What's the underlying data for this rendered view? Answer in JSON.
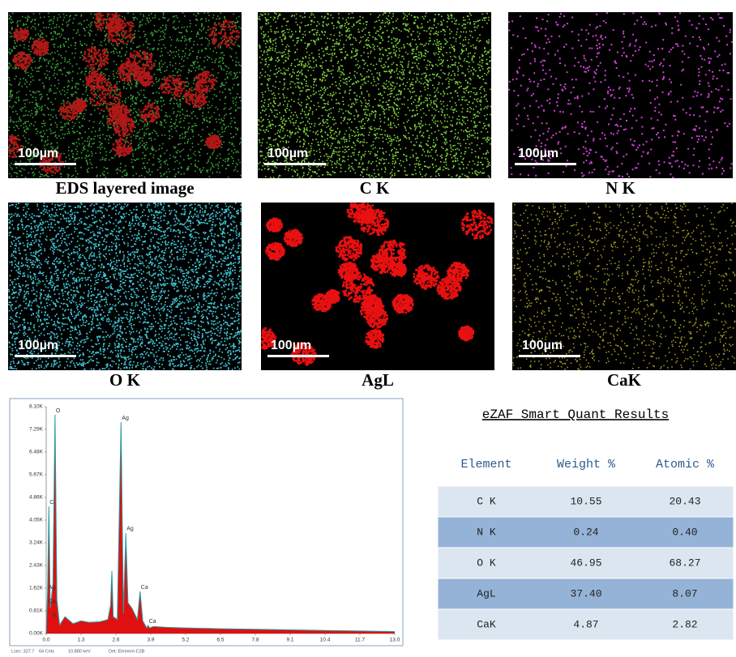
{
  "maps": [
    {
      "label": "EDS layered image",
      "scale_bar": "100µm"
    },
    {
      "label": "C K",
      "scale_bar": "100µm"
    },
    {
      "label": "N K",
      "scale_bar": "100µm"
    },
    {
      "label": "O K",
      "scale_bar": "100µm"
    },
    {
      "label": "AgL",
      "scale_bar": "100µm"
    },
    {
      "label": "CaK",
      "scale_bar": "100µm"
    }
  ],
  "chart_data": {
    "type": "area",
    "x": [
      0,
      0.05,
      0.1,
      0.15,
      0.2,
      0.25,
      0.33,
      0.4,
      0.5,
      0.7,
      1.0,
      1.3,
      1.6,
      2.0,
      2.3,
      2.4,
      2.45,
      2.5,
      2.65,
      2.79,
      2.88,
      2.97,
      3.05,
      3.2,
      3.4,
      3.5,
      3.6,
      3.75,
      3.8,
      3.85,
      4.0,
      4.5,
      5.2,
      6.5,
      7.8,
      9.1,
      10.4,
      11.7,
      13.0
    ],
    "values": [
      0,
      1500,
      4540,
      900,
      1300,
      1800,
      7810,
      1200,
      300,
      600,
      350,
      450,
      400,
      420,
      500,
      1000,
      2230,
      600,
      500,
      7550,
      700,
      3590,
      1100,
      900,
      500,
      1500,
      450,
      200,
      290,
      200,
      250,
      220,
      200,
      170,
      150,
      130,
      110,
      90,
      70
    ],
    "color": "#e01010",
    "line_color": "#2a9aa0",
    "xlim": [
      0,
      13.0
    ],
    "xticks": [
      {
        "value": 0,
        "label": "0.0"
      },
      1.3,
      2.6,
      3.9,
      5.2,
      6.5,
      7.8,
      9.1,
      10.4,
      11.7,
      {
        "value": 13,
        "label": "13.0"
      }
    ],
    "ylim": [
      0,
      8100
    ],
    "yticks": [
      {
        "value": 0,
        "label": "0.00K"
      },
      {
        "value": 810,
        "label": "0.81K"
      },
      {
        "value": 1620,
        "label": "1.62K"
      },
      {
        "value": 2430,
        "label": "2.43K"
      },
      {
        "value": 3240,
        "label": "3.24K"
      },
      {
        "value": 4050,
        "label": "4.05K"
      },
      {
        "value": 4860,
        "label": "4.86K"
      },
      {
        "value": 5670,
        "label": "5.67K"
      },
      {
        "value": 6480,
        "label": "6.48K"
      },
      {
        "value": 7290,
        "label": "7.29K"
      },
      {
        "value": 8100,
        "label": "8.10K"
      }
    ],
    "annotations": [
      {
        "label": "C",
        "x": 0.1,
        "y": 4540
      },
      {
        "label": "O",
        "x": 0.33,
        "y": 7810
      },
      {
        "label": "Ag",
        "x": 0.05,
        "y": 1500
      },
      {
        "label": "Ca",
        "x": 0.05,
        "y": 1000
      },
      {
        "label": "N",
        "x": 0.2,
        "y": 500
      },
      {
        "label": "Ag",
        "x": 2.79,
        "y": 7550
      },
      {
        "label": "Ag",
        "x": 2.97,
        "y": 3590
      },
      {
        "label": "Ca",
        "x": 3.5,
        "y": 1500
      },
      {
        "label": "Ca",
        "x": 3.8,
        "y": 290
      }
    ],
    "footer": [
      "Lsec: 327.7",
      "64 Cnts",
      "10.880 keV",
      "Det: Element-C2B"
    ]
  },
  "table": {
    "title": "eZAF Smart Quant Results",
    "headers": [
      "Element",
      "Weight %",
      "Atomic %"
    ],
    "rows": [
      [
        "C K",
        "10.55",
        "20.43"
      ],
      [
        "N K",
        "0.24",
        "0.40"
      ],
      [
        "O K",
        "46.95",
        "68.27"
      ],
      [
        "AgL",
        "37.40",
        "8.07"
      ],
      [
        "CaK",
        "4.87",
        "2.82"
      ]
    ]
  }
}
